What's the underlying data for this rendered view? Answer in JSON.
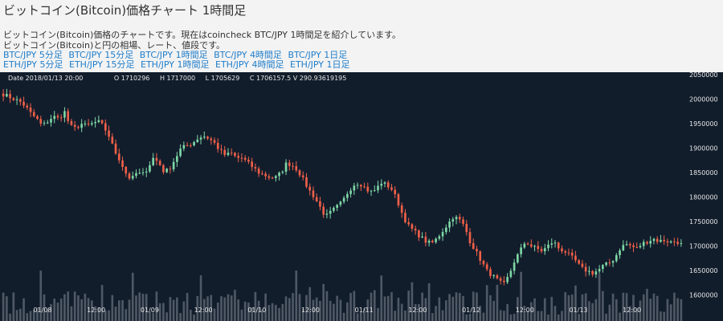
{
  "page": {
    "title": "ビットコイン(Bitcoin)価格チャート 1時間足",
    "description_1": "ビットコイン(Bitcoin)価格のチャートです。現在はcoincheck BTC/JPY 1時間足を紹介しています。",
    "description_2": "ビットコイン(Bitcoin)と円の相場、レート、値段です。"
  },
  "links": {
    "btc": [
      "BTC/JPY 5分足",
      "BTC/JPY 15分足",
      "BTC/JPY 1時間足",
      "BTC/JPY 4時間足",
      "BTC/JPY 1日足"
    ],
    "eth": [
      "ETH/JPY 5分足",
      "ETH/JPY 15分足",
      "ETH/JPY 1時間足",
      "ETH/JPY 4時間足",
      "ETH/JPY 1日足"
    ]
  },
  "ohlc": {
    "date": "Date 2018/01/13 20:00",
    "open": "O 1710296",
    "high": "H 1717000",
    "low": "L 1705629",
    "close_volume": "C 1706157.5 V 290.93619195"
  },
  "colors": {
    "background": "#121d2c",
    "up": "#7ed8a6",
    "down": "#f06048",
    "volume": "#5b6370",
    "axis_text": "#e6e6e6",
    "link": "#1f7dc9"
  },
  "chart_data": {
    "type": "candlestick",
    "x_ticks": [
      "01/08",
      "12:00",
      "01/09",
      "12:00",
      "01/10",
      "12:00",
      "01/11",
      "12:00",
      "01/12",
      "12:00",
      "01/13",
      "12:00"
    ],
    "y_ticks": [
      "2050000",
      "2000000",
      "1950000",
      "1900000",
      "1850000",
      "1800000",
      "1750000",
      "1700000",
      "1650000",
      "1600000"
    ],
    "ylim": [
      1575000,
      2055000
    ],
    "close_path": [
      2010000,
      2005000,
      2000000,
      1995000,
      1985000,
      1970000,
      1960000,
      1945000,
      1955000,
      1965000,
      1960000,
      1975000,
      1945000,
      1940000,
      1950000,
      1945000,
      1950000,
      1955000,
      1945000,
      1925000,
      1895000,
      1875000,
      1850000,
      1835000,
      1850000,
      1845000,
      1860000,
      1880000,
      1870000,
      1850000,
      1860000,
      1880000,
      1900000,
      1905000,
      1910000,
      1920000,
      1925000,
      1920000,
      1910000,
      1895000,
      1885000,
      1890000,
      1880000,
      1880000,
      1870000,
      1860000,
      1850000,
      1845000,
      1840000,
      1840000,
      1850000,
      1870000,
      1865000,
      1855000,
      1835000,
      1815000,
      1800000,
      1780000,
      1760000,
      1770000,
      1780000,
      1790000,
      1810000,
      1825000,
      1830000,
      1820000,
      1810000,
      1815000,
      1830000,
      1825000,
      1815000,
      1790000,
      1760000,
      1740000,
      1730000,
      1720000,
      1710000,
      1705000,
      1715000,
      1730000,
      1745000,
      1760000,
      1755000,
      1740000,
      1710000,
      1690000,
      1670000,
      1650000,
      1640000,
      1630000,
      1620000,
      1640000,
      1670000,
      1690000,
      1710000,
      1700000,
      1695000,
      1690000,
      1700000,
      1710000,
      1695000,
      1690000,
      1680000,
      1670000,
      1655000,
      1650000,
      1645000,
      1650000,
      1660000,
      1665000,
      1675000,
      1695000,
      1705000,
      1700000,
      1695000,
      1705000,
      1710000,
      1715000,
      1710000,
      1712000,
      1708000,
      1710000,
      1706157
    ]
  }
}
